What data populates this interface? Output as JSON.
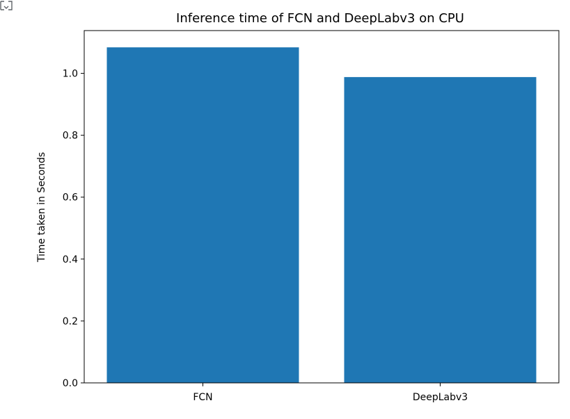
{
  "output_cell": {
    "icon": "output-expand-icon"
  },
  "chart_data": {
    "type": "bar",
    "title": "Inference time of FCN and DeepLabv3 on CPU",
    "xlabel": "",
    "ylabel": "Time taken in Seconds",
    "categories": [
      "FCN",
      "DeepLabv3"
    ],
    "values": [
      1.084,
      0.988
    ],
    "ylim": [
      0,
      1.1382
    ],
    "yticks": [
      "0.0",
      "0.2",
      "0.4",
      "0.6",
      "0.8",
      "1.0"
    ],
    "grid": false,
    "bar_color": "#1f77b4"
  }
}
